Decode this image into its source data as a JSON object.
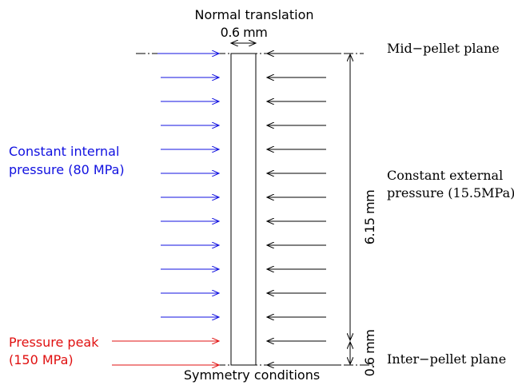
{
  "labels": {
    "top_title": "Normal translation",
    "width_dim": "0.6 mm",
    "mid_plane": "Mid−pellet plane",
    "inter_plane": "Inter−pellet plane",
    "internal_line1": "Constant internal",
    "internal_line2": "pressure (80 MPa)",
    "external_line1": "Constant external",
    "external_line2": "pressure (15.5MPa)",
    "peak_line1": "Pressure peak",
    "peak_line2": "(150 MPa)",
    "length_dim": "6.15 mm",
    "peak_dim": "0.6 mm",
    "bottom_title": "Symmetry conditions"
  },
  "colors": {
    "internal": "#1010e0",
    "peak": "#e01010",
    "external": "#000000",
    "structure": "#000000"
  },
  "arrows": {
    "internal_count": 12,
    "peak_count": 2,
    "external_count": 14
  }
}
